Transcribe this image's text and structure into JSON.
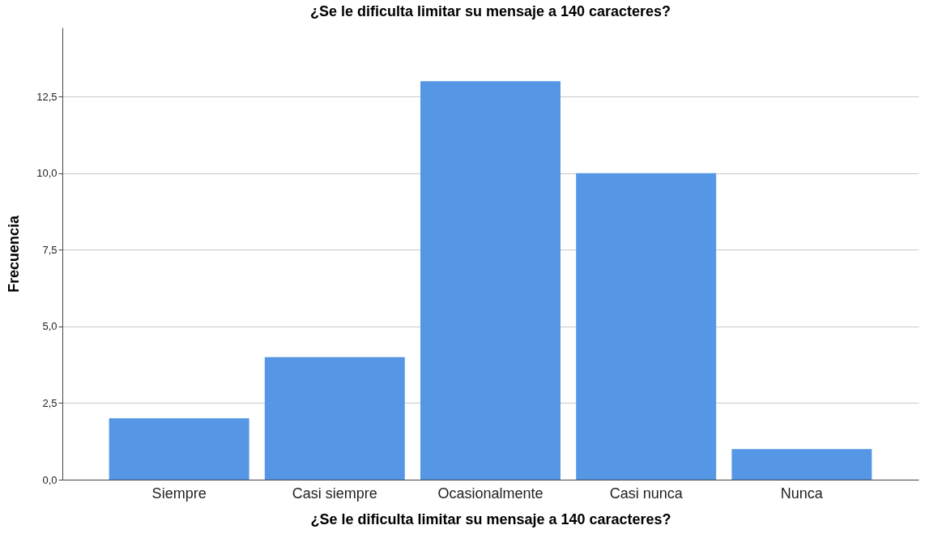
{
  "chart_data": {
    "type": "bar",
    "title": "¿Se le dificulta limitar su mensaje a 140 caracteres?",
    "xlabel": "¿Se le dificulta limitar su mensaje a 140 caracteres?",
    "ylabel": "Frecuencia",
    "categories": [
      "Siempre",
      "Casi siempre",
      "Ocasionalmente",
      "Casi nunca",
      "Nunca"
    ],
    "values": [
      2,
      4,
      13,
      10,
      1
    ],
    "color": "#5596e5",
    "ylim": [
      0,
      14.75
    ],
    "yticks": [
      {
        "value": 0,
        "label": "0,0"
      },
      {
        "value": 2.5,
        "label": "2,5"
      },
      {
        "value": 5,
        "label": "5,0"
      },
      {
        "value": 7.5,
        "label": "7,5"
      },
      {
        "value": 10,
        "label": "10,0"
      },
      {
        "value": 12.5,
        "label": "12,5"
      }
    ],
    "grid": "y"
  }
}
